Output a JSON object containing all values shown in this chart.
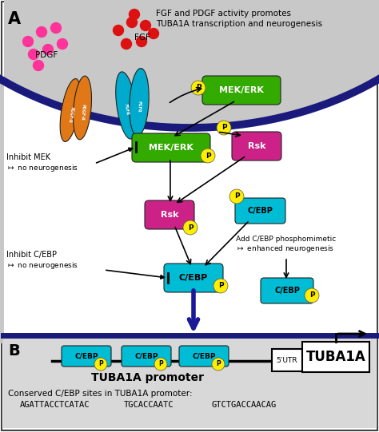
{
  "fig_width": 4.74,
  "fig_height": 5.41,
  "dpi": 100,
  "bg_white": "#ffffff",
  "bg_cell": "#c8c8c8",
  "membrane_color": "#1a1a7c",
  "orange_receptor": "#e07818",
  "cyan_receptor": "#00aacc",
  "green_mek": "#33aa00",
  "pink_rsk": "#cc2288",
  "cyan_cebp": "#00bcd4",
  "yellow_p": "#ffee00",
  "red_dots": "#dd1111",
  "pink_dots": "#ff3399",
  "dark_blue_arrow": "#1a1a99",
  "border_color": "#444444",
  "text_color": "#000000",
  "title_text1": "FGF and PDGF activity promotes",
  "title_text2": "TUBA1A transcription and neurogenesis",
  "label_A": "A",
  "label_B": "B",
  "bottom_text1": "Conserved C/EBP sites in TUBA1A promoter:",
  "bottom_text2": "AGATTACCTCATAC",
  "bottom_text3": "TGCACCAATC",
  "bottom_text4": "GTCTGACCAACAG",
  "promoter_text": "TUBA1A promoter",
  "tuba1a_text": "TUBA1A",
  "utr_text": "5’UTR"
}
